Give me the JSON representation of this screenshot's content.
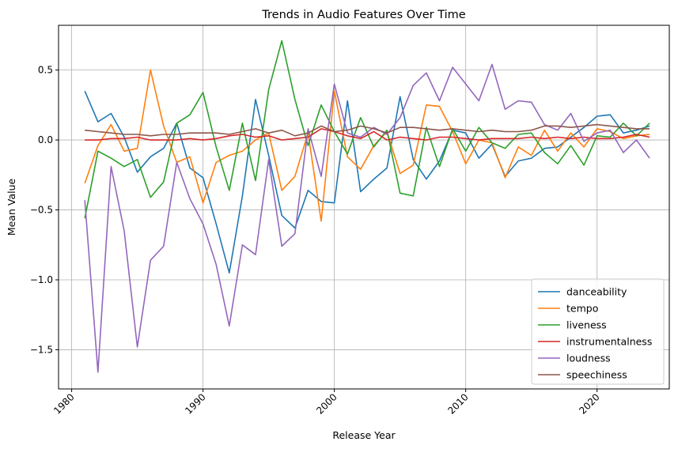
{
  "chart_data": {
    "type": "line",
    "title": "Trends in Audio Features Over Time",
    "xlabel": "Release Year",
    "ylabel": "Mean Value",
    "xlim": [
      1979,
      2025.5
    ],
    "ylim": [
      -1.78,
      0.82
    ],
    "xticks": [
      1980,
      1990,
      2000,
      2010,
      2020
    ],
    "yticks": [
      -1.5,
      -1.0,
      -0.5,
      0.0,
      0.5
    ],
    "ytick_labels": [
      "−1.5",
      "−1.0",
      "−0.5",
      "0.0",
      "0.5"
    ],
    "grid": true,
    "legend_position": "lower-right",
    "x": [
      1981,
      1982,
      1983,
      1984,
      1985,
      1986,
      1987,
      1988,
      1989,
      1990,
      1991,
      1992,
      1993,
      1994,
      1995,
      1996,
      1997,
      1998,
      1999,
      2000,
      2001,
      2002,
      2003,
      2004,
      2005,
      2006,
      2007,
      2008,
      2009,
      2010,
      2011,
      2012,
      2013,
      2014,
      2015,
      2016,
      2017,
      2018,
      2019,
      2020,
      2021,
      2022,
      2023,
      2024
    ],
    "series": [
      {
        "name": "danceability",
        "color": "#1f77b4",
        "values": [
          0.35,
          0.13,
          0.19,
          0.02,
          -0.23,
          -0.12,
          -0.06,
          0.12,
          -0.2,
          -0.27,
          -0.6,
          -0.95,
          -0.4,
          0.29,
          -0.11,
          -0.54,
          -0.63,
          -0.36,
          -0.44,
          -0.45,
          0.28,
          -0.37,
          -0.28,
          -0.2,
          0.31,
          -0.14,
          -0.28,
          -0.15,
          0.07,
          0.05,
          -0.13,
          -0.03,
          -0.26,
          -0.15,
          -0.13,
          -0.06,
          -0.05,
          0.02,
          0.09,
          0.17,
          0.18,
          0.05,
          0.07,
          0.1
        ]
      },
      {
        "name": "tempo",
        "color": "#ff7f0e",
        "values": [
          -0.31,
          -0.04,
          0.11,
          -0.08,
          -0.06,
          0.5,
          0.1,
          -0.16,
          -0.12,
          -0.45,
          -0.16,
          -0.11,
          -0.08,
          0.0,
          0.05,
          -0.36,
          -0.26,
          0.05,
          -0.58,
          0.35,
          -0.12,
          -0.21,
          -0.04,
          0.06,
          -0.24,
          -0.18,
          0.25,
          0.24,
          0.06,
          -0.17,
          0.0,
          -0.02,
          -0.27,
          -0.05,
          -0.11,
          0.07,
          -0.08,
          0.05,
          -0.05,
          0.08,
          0.06,
          0.01,
          0.03,
          0.04
        ]
      },
      {
        "name": "liveness",
        "color": "#2ca02c",
        "values": [
          -0.56,
          -0.08,
          -0.13,
          -0.19,
          -0.14,
          -0.41,
          -0.3,
          0.12,
          0.18,
          0.34,
          -0.05,
          -0.36,
          0.12,
          -0.29,
          0.36,
          0.71,
          0.29,
          -0.04,
          0.25,
          0.06,
          -0.1,
          0.16,
          -0.05,
          0.07,
          -0.38,
          -0.4,
          0.09,
          -0.19,
          0.08,
          -0.08,
          0.09,
          -0.02,
          -0.06,
          0.04,
          0.05,
          -0.09,
          -0.17,
          -0.04,
          -0.18,
          0.03,
          0.02,
          0.12,
          0.03,
          0.12
        ]
      },
      {
        "name": "instrumentalness",
        "color": "#d62728",
        "values": [
          0.0,
          0.0,
          0.01,
          0.01,
          0.02,
          0.0,
          0.0,
          0.0,
          0.01,
          0.0,
          0.01,
          0.03,
          0.04,
          0.02,
          0.03,
          0.0,
          0.01,
          0.02,
          0.08,
          0.06,
          0.03,
          0.01,
          0.06,
          0.0,
          0.02,
          0.01,
          0.0,
          0.02,
          0.02,
          0.01,
          0.0,
          0.01,
          0.01,
          0.01,
          0.02,
          0.01,
          0.02,
          0.01,
          0.02,
          0.01,
          0.01,
          0.02,
          0.04,
          0.02
        ]
      },
      {
        "name": "loudness",
        "color": "#9467bd",
        "values": [
          -0.43,
          -1.66,
          -0.19,
          -0.65,
          -1.48,
          -0.86,
          -0.76,
          -0.16,
          -0.42,
          -0.6,
          -0.89,
          -1.33,
          -0.75,
          -0.82,
          -0.14,
          -0.76,
          -0.67,
          0.08,
          -0.26,
          0.4,
          0.05,
          0.02,
          0.09,
          0.04,
          0.16,
          0.39,
          0.48,
          0.28,
          0.52,
          0.4,
          0.28,
          0.54,
          0.22,
          0.28,
          0.27,
          0.11,
          0.07,
          0.19,
          -0.01,
          0.05,
          0.07,
          -0.09,
          0.0,
          -0.13
        ]
      },
      {
        "name": "speechiness",
        "color": "#8c564b",
        "values": [
          0.07,
          0.06,
          0.05,
          0.04,
          0.04,
          0.03,
          0.04,
          0.04,
          0.05,
          0.05,
          0.05,
          0.04,
          0.06,
          0.08,
          0.05,
          0.07,
          0.03,
          0.05,
          0.1,
          0.06,
          0.07,
          0.1,
          0.08,
          0.05,
          0.09,
          0.09,
          0.08,
          0.07,
          0.08,
          0.07,
          0.06,
          0.07,
          0.06,
          0.06,
          0.07,
          0.1,
          0.1,
          0.09,
          0.1,
          0.11,
          0.1,
          0.09,
          0.08,
          0.08
        ]
      }
    ]
  }
}
